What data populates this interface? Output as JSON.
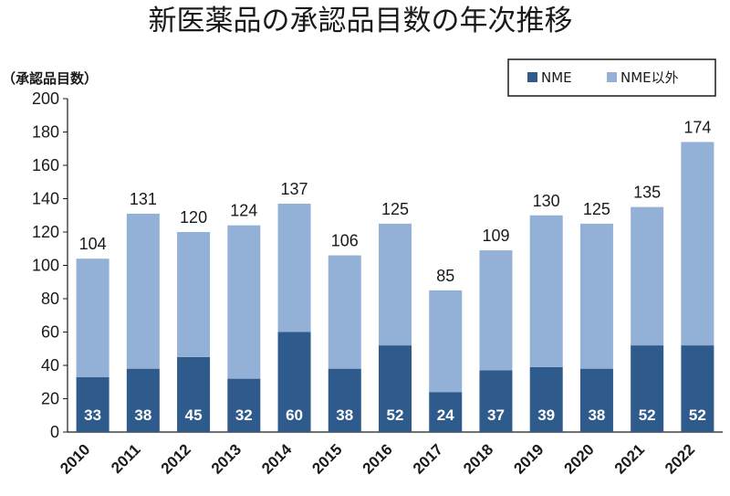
{
  "chart_data": {
    "type": "bar",
    "stacked": true,
    "title": "新医薬品の承認品目数の年次推移",
    "ylabel": "（承認品目数）",
    "xlabel": "",
    "ylim": [
      0,
      200
    ],
    "yticks": [
      "0",
      "20",
      "40",
      "60",
      "80",
      "100",
      "120",
      "140",
      "160",
      "180",
      "200"
    ],
    "grid": false,
    "legend_position": "top-right",
    "categories": [
      "2010",
      "2011",
      "2012",
      "2013",
      "2014",
      "2015",
      "2016",
      "2017",
      "2018",
      "2019",
      "2020",
      "2021",
      "2022"
    ],
    "series": [
      {
        "name": "NME",
        "color": "#2e5a8c",
        "values": [
          33,
          38,
          45,
          32,
          60,
          38,
          52,
          24,
          37,
          39,
          38,
          52,
          52
        ]
      },
      {
        "name": "NME以外",
        "color": "#93b0d6",
        "values": [
          71,
          93,
          75,
          92,
          77,
          68,
          73,
          61,
          72,
          91,
          87,
          83,
          122
        ]
      }
    ],
    "nme_labels": [
      "33",
      "38",
      "45",
      "32",
      "60",
      "38",
      "52",
      "24",
      "37",
      "39",
      "38",
      "52",
      "52"
    ],
    "total_labels": [
      "104",
      "131",
      "120",
      "124",
      "137",
      "106",
      "125",
      "85",
      "109",
      "130",
      "125",
      "135",
      "174"
    ]
  }
}
